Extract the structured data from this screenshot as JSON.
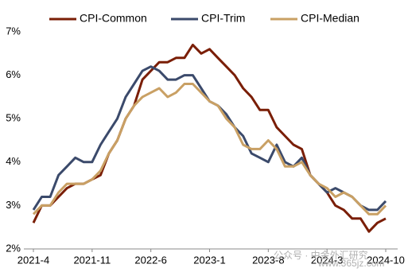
{
  "chart_data": {
    "type": "line",
    "categories": [
      "2021-4",
      null,
      null,
      null,
      null,
      null,
      null,
      "2021-11",
      null,
      null,
      null,
      null,
      null,
      null,
      "2022-6",
      null,
      null,
      null,
      null,
      null,
      null,
      "2023-1",
      null,
      null,
      null,
      null,
      null,
      null,
      "2023-8",
      null,
      null,
      null,
      null,
      null,
      null,
      "2024-3",
      null,
      null,
      null,
      null,
      null,
      null,
      "2024-10"
    ],
    "series": [
      {
        "name": "CPI-Common",
        "color": "#7a1e06",
        "values": [
          2.6,
          3.0,
          3.0,
          3.2,
          3.4,
          3.5,
          3.5,
          3.6,
          3.7,
          4.2,
          4.5,
          5.0,
          5.3,
          5.9,
          6.1,
          6.3,
          6.3,
          6.4,
          6.4,
          6.7,
          6.5,
          6.6,
          6.4,
          6.2,
          6.0,
          5.7,
          5.5,
          5.2,
          5.2,
          4.8,
          4.6,
          4.4,
          4.3,
          3.7,
          3.5,
          3.3,
          3.0,
          2.9,
          2.7,
          2.7,
          2.4,
          2.6,
          2.7
        ]
      },
      {
        "name": "CPI-Trim",
        "color": "#3b4a6b",
        "values": [
          2.9,
          3.2,
          3.2,
          3.7,
          3.9,
          4.1,
          4.0,
          4.0,
          4.4,
          4.7,
          5.0,
          5.5,
          5.8,
          6.1,
          6.2,
          6.1,
          5.9,
          5.9,
          6.0,
          6.0,
          5.7,
          5.4,
          5.3,
          5.1,
          4.8,
          4.6,
          4.2,
          4.1,
          4.0,
          4.4,
          4.0,
          3.9,
          4.1,
          3.7,
          3.5,
          3.3,
          3.4,
          3.3,
          3.2,
          3.0,
          2.9,
          2.9,
          3.1
        ]
      },
      {
        "name": "CPI-Median",
        "color": "#c9a064",
        "values": [
          2.8,
          3.0,
          3.0,
          3.3,
          3.5,
          3.5,
          3.5,
          3.6,
          3.8,
          4.2,
          4.5,
          5.0,
          5.3,
          5.5,
          5.6,
          5.7,
          5.5,
          5.6,
          5.8,
          5.8,
          5.6,
          5.4,
          5.3,
          5.0,
          4.8,
          4.4,
          4.3,
          4.3,
          4.5,
          4.3,
          3.9,
          3.9,
          4.0,
          3.7,
          3.5,
          3.4,
          3.2,
          3.3,
          3.2,
          3.0,
          2.8,
          2.8,
          3.0
        ]
      }
    ],
    "ylim": [
      2,
      7
    ],
    "yticks": [
      {
        "value": 2,
        "label": "2%"
      },
      {
        "value": 3,
        "label": "3%"
      },
      {
        "value": 4,
        "label": "4%"
      },
      {
        "value": 5,
        "label": "5%"
      },
      {
        "value": 6,
        "label": "6%"
      },
      {
        "value": 7,
        "label": "7%"
      }
    ],
    "grid": false,
    "legend": "top",
    "watermark": [
      "公众号 · 中金外汇研究",
      "www.365jz.com"
    ]
  }
}
